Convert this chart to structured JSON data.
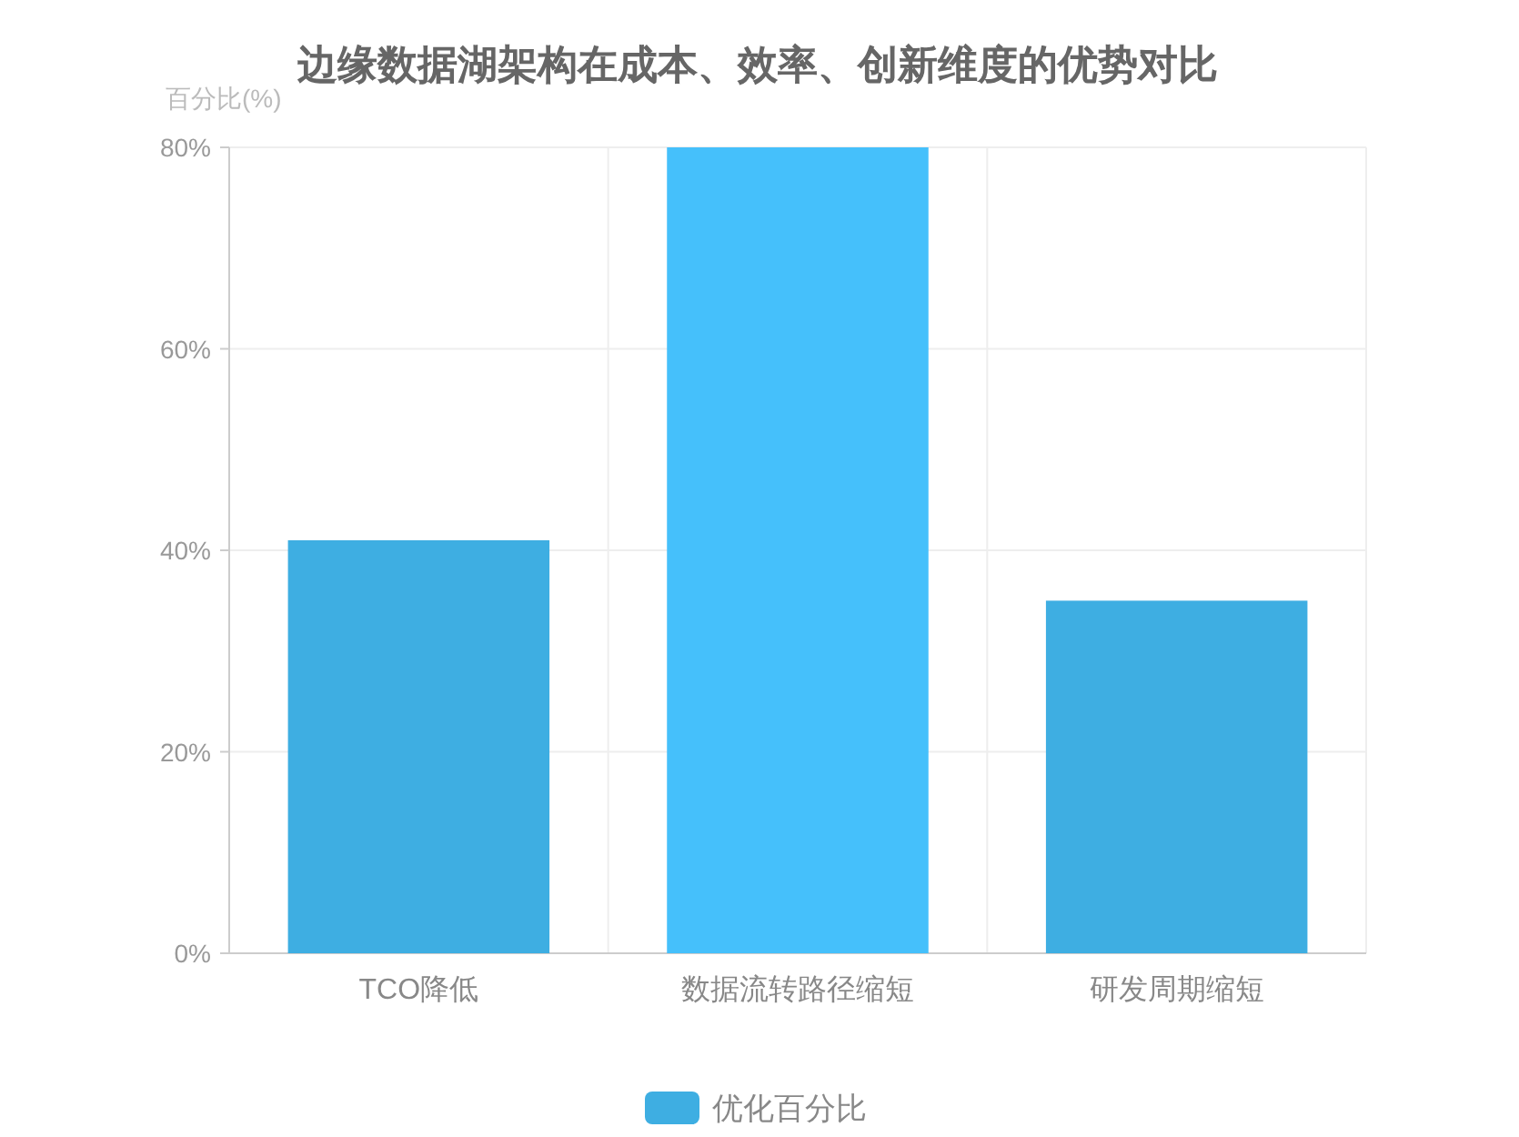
{
  "chart_data": {
    "type": "bar",
    "title": "边缘数据湖架构在成本、效率、创新维度的优势对比",
    "ylabel": "百分比(%)",
    "categories": [
      "TCO降低",
      "数据流转路径缩短",
      "研发周期缩短"
    ],
    "series": [
      {
        "name": "优化百分比",
        "color": "#3eaee2",
        "colors": [
          "#3eaee2",
          "#45c0fb",
          "#3eaee2"
        ],
        "values": [
          41,
          80,
          35
        ]
      }
    ],
    "ylim": [
      0,
      80
    ],
    "yticks": [
      {
        "value": 0,
        "label": "0%"
      },
      {
        "value": 20,
        "label": "20%"
      },
      {
        "value": 40,
        "label": "40%"
      },
      {
        "value": 60,
        "label": "60%"
      },
      {
        "value": 80,
        "label": "80%"
      }
    ],
    "grid": true,
    "legend": "bottom"
  }
}
